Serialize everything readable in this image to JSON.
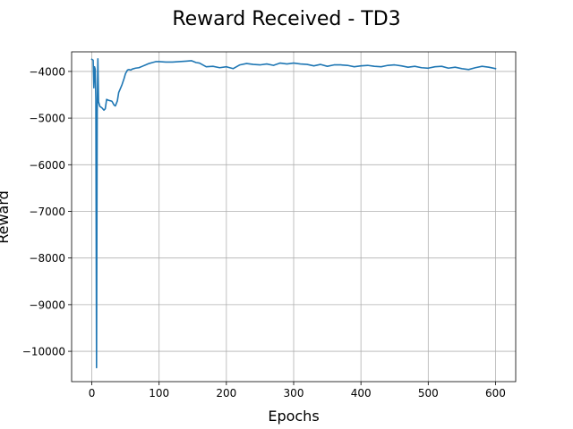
{
  "chart_data": {
    "type": "line",
    "title": "Reward Received - TD3",
    "xlabel": "Epochs",
    "ylabel": "Reward",
    "xlim": [
      -30,
      630
    ],
    "ylim": [
      -10650,
      -3580
    ],
    "xticks": [
      0,
      100,
      200,
      300,
      400,
      500,
      600
    ],
    "yticks": [
      -4000,
      -5000,
      -6000,
      -7000,
      -8000,
      -9000,
      -10000
    ],
    "grid": true,
    "legend": "none",
    "colors": {
      "series": "#1f77b4"
    },
    "series": [
      {
        "x": [
          0,
          2,
          3,
          4,
          5,
          6,
          7,
          8,
          9,
          10,
          12,
          15,
          18,
          20,
          22,
          25,
          28,
          30,
          33,
          35,
          38,
          40,
          43,
          45,
          48,
          50,
          53,
          55,
          58,
          60,
          65,
          70,
          75,
          80,
          85,
          90,
          95,
          100,
          110,
          120,
          130,
          140,
          148,
          155,
          160,
          170,
          180,
          190,
          200,
          210,
          220,
          230,
          240,
          250,
          260,
          270,
          280,
          290,
          300,
          310,
          320,
          330,
          340,
          350,
          360,
          370,
          380,
          390,
          400,
          410,
          420,
          430,
          440,
          450,
          460,
          470,
          480,
          490,
          500,
          510,
          520,
          530,
          540,
          550,
          560,
          570,
          580,
          590,
          600
        ],
        "y": [
          -3740,
          -3760,
          -4350,
          -3900,
          -3950,
          -4600,
          -10350,
          -4900,
          -3730,
          -4650,
          -4750,
          -4780,
          -4830,
          -4800,
          -4600,
          -4620,
          -4630,
          -4640,
          -4720,
          -4740,
          -4630,
          -4450,
          -4350,
          -4280,
          -4150,
          -4050,
          -3970,
          -3960,
          -3970,
          -3950,
          -3930,
          -3920,
          -3890,
          -3860,
          -3830,
          -3810,
          -3790,
          -3790,
          -3800,
          -3800,
          -3790,
          -3780,
          -3770,
          -3810,
          -3820,
          -3900,
          -3890,
          -3920,
          -3900,
          -3940,
          -3860,
          -3830,
          -3850,
          -3860,
          -3840,
          -3870,
          -3820,
          -3840,
          -3820,
          -3840,
          -3850,
          -3880,
          -3850,
          -3890,
          -3860,
          -3860,
          -3870,
          -3900,
          -3880,
          -3870,
          -3890,
          -3900,
          -3870,
          -3860,
          -3880,
          -3910,
          -3890,
          -3920,
          -3930,
          -3900,
          -3890,
          -3930,
          -3910,
          -3940,
          -3960,
          -3920,
          -3890,
          -3910,
          -3940
        ]
      }
    ]
  }
}
